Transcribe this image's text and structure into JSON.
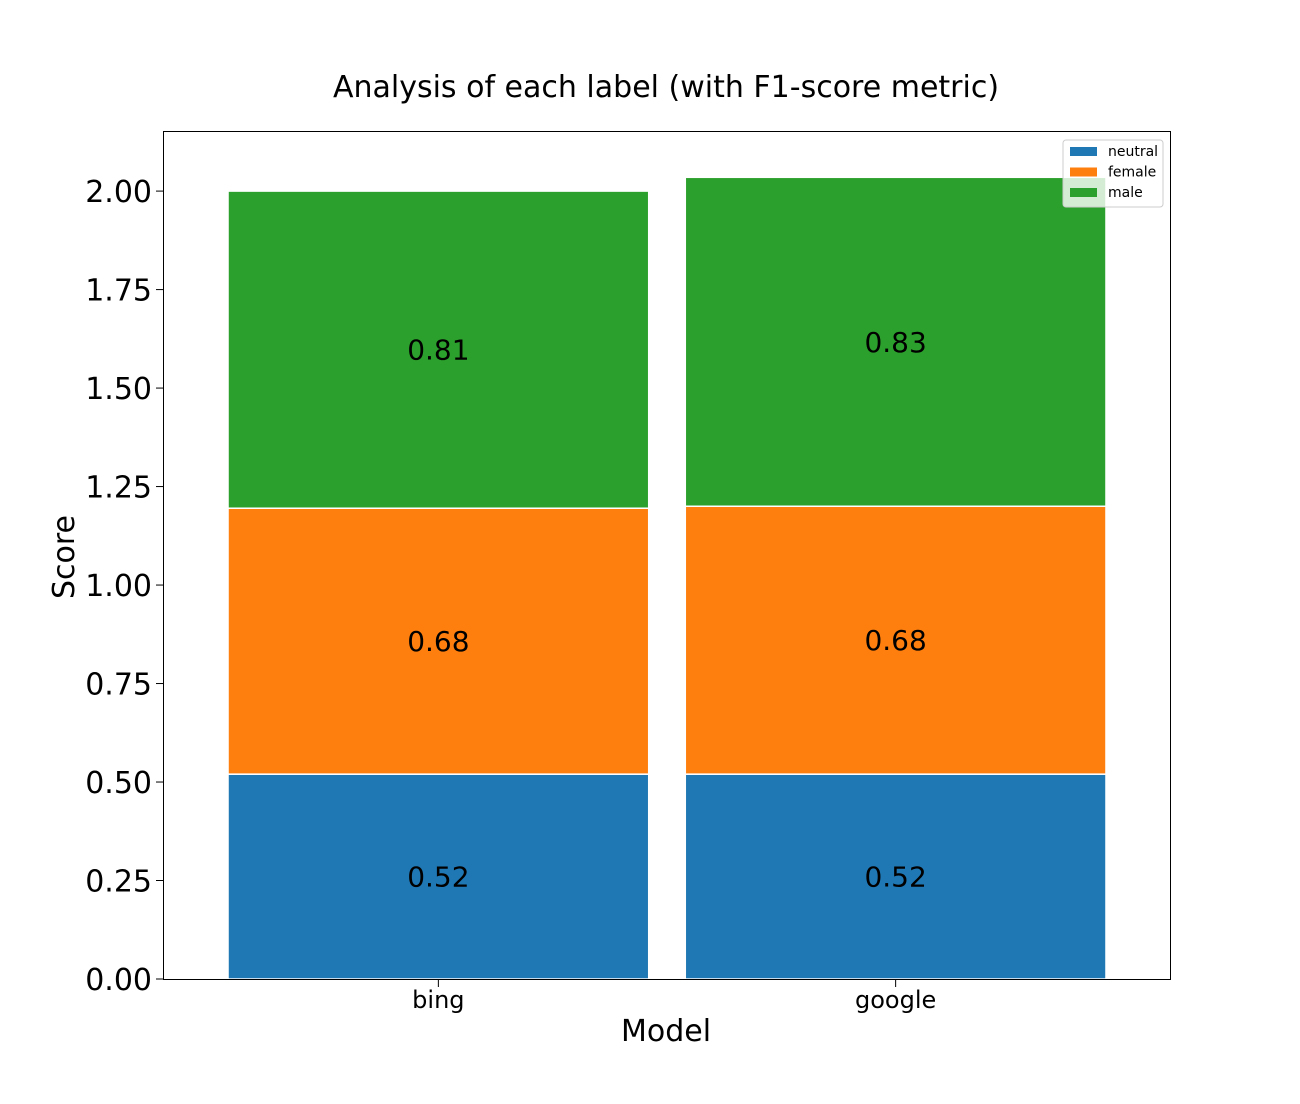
{
  "chart_data": {
    "type": "bar",
    "stacked": true,
    "title": "Analysis of each label (with F1-score metric)",
    "xlabel": "Model",
    "ylabel": "Score",
    "categories": [
      "bing",
      "google"
    ],
    "ylim": [
      0,
      2.15
    ],
    "yticks": [
      "0.00",
      "0.25",
      "0.50",
      "0.75",
      "1.00",
      "1.25",
      "1.50",
      "1.75",
      "2.00"
    ],
    "series": [
      {
        "name": "neutral",
        "color": "#1f77b4",
        "values": [
          0.52,
          0.52
        ],
        "labels": [
          "0.52",
          "0.52"
        ]
      },
      {
        "name": "female",
        "color": "#ff7f0e",
        "values": [
          0.675,
          0.68
        ],
        "labels": [
          "0.68",
          "0.68"
        ]
      },
      {
        "name": "male",
        "color": "#2ca02c",
        "values": [
          0.805,
          0.835
        ],
        "labels": [
          "0.81",
          "0.83"
        ]
      }
    ],
    "grid": false,
    "legend_position": "top-right"
  }
}
